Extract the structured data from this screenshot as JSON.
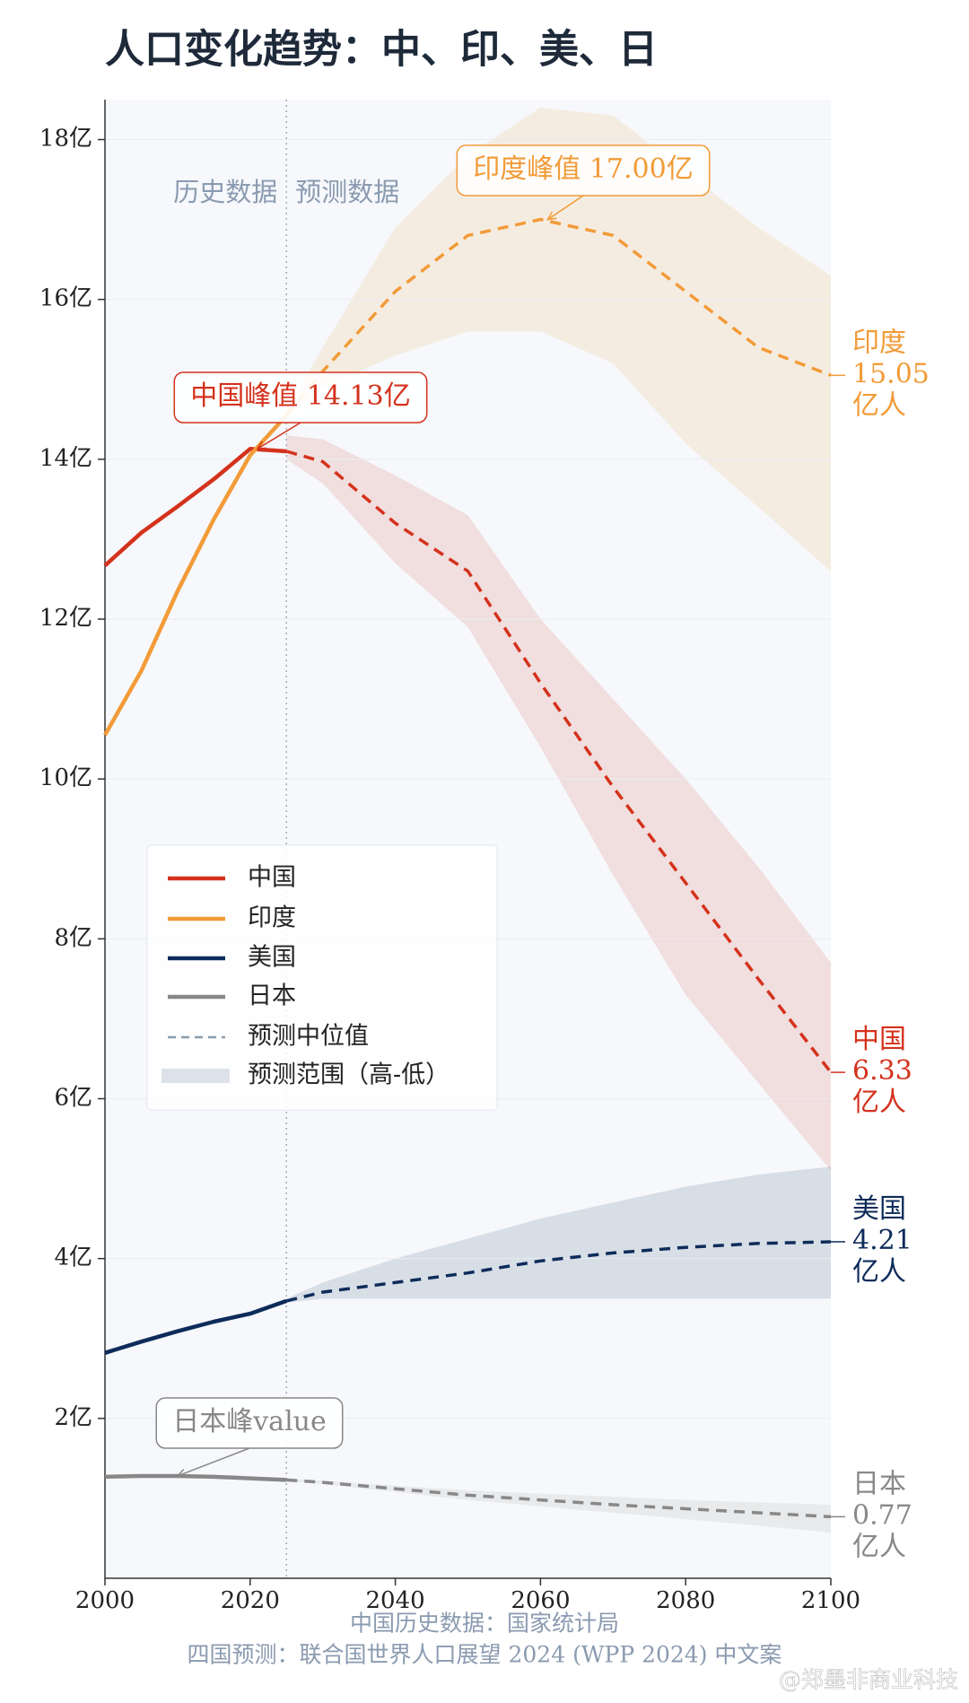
{
  "chart_data": {
    "type": "line",
    "title": "人口变化趋势：中、印、美、日",
    "x": [
      2000,
      2005,
      2010,
      2015,
      2020,
      2025,
      2030,
      2040,
      2050,
      2060,
      2070,
      2080,
      2090,
      2100
    ],
    "xlim": [
      2000,
      2100
    ],
    "xticks": [
      2000,
      2020,
      2040,
      2060,
      2080,
      2100
    ],
    "ylim": [
      0,
      18.5
    ],
    "yticks": [
      {
        "value": 2,
        "label": "2亿"
      },
      {
        "value": 4,
        "label": "4亿"
      },
      {
        "value": 6,
        "label": "6亿"
      },
      {
        "value": 8,
        "label": "8亿"
      },
      {
        "value": 10,
        "label": "10亿"
      },
      {
        "value": 12,
        "label": "12亿"
      },
      {
        "value": 14,
        "label": "14亿"
      },
      {
        "value": 16,
        "label": "16亿"
      },
      {
        "value": 18,
        "label": "18亿"
      }
    ],
    "grid": true,
    "divider": 2025,
    "divider_labels": [
      "历史数据",
      "预测数据"
    ],
    "series": [
      {
        "name": "中国",
        "color": "#d4321c",
        "history": [
          12.67,
          13.08,
          13.41,
          13.75,
          14.13,
          14.1,
          null,
          null,
          null,
          null,
          null,
          null,
          null,
          null
        ],
        "projection": [
          null,
          null,
          null,
          null,
          null,
          14.1,
          13.97,
          13.2,
          12.6,
          11.2,
          9.9,
          8.7,
          7.5,
          6.33
        ],
        "high": [
          null,
          null,
          null,
          null,
          null,
          14.3,
          14.25,
          13.8,
          13.3,
          12.0,
          11.0,
          10.0,
          8.9,
          7.7
        ],
        "low": [
          null,
          null,
          null,
          null,
          null,
          14.0,
          13.7,
          12.7,
          11.9,
          10.4,
          8.8,
          7.3,
          6.2,
          5.1
        ],
        "end_label": [
          "中国",
          "6.33",
          "亿人"
        ]
      },
      {
        "name": "印度",
        "color": "#f29b38",
        "history": [
          10.55,
          11.35,
          12.35,
          13.25,
          14.05,
          14.55,
          null,
          null,
          null,
          null,
          null,
          null,
          null,
          null
        ],
        "projection": [
          null,
          null,
          null,
          null,
          null,
          14.55,
          15.1,
          16.1,
          16.8,
          17.0,
          16.8,
          16.1,
          15.4,
          15.05
        ],
        "high": [
          null,
          null,
          null,
          null,
          null,
          14.6,
          15.4,
          16.9,
          17.8,
          18.4,
          18.3,
          17.6,
          16.9,
          16.3
        ],
        "low": [
          null,
          null,
          null,
          null,
          null,
          14.5,
          14.9,
          15.3,
          15.6,
          15.6,
          15.2,
          14.2,
          13.4,
          12.6
        ],
        "end_label": [
          "印度",
          "15.05",
          "亿人"
        ]
      },
      {
        "name": "美国",
        "color": "#0e2c5a",
        "history": [
          2.82,
          2.96,
          3.09,
          3.21,
          3.31,
          3.47,
          null,
          null,
          null,
          null,
          null,
          null,
          null,
          null
        ],
        "projection": [
          null,
          null,
          null,
          null,
          null,
          3.47,
          3.58,
          3.7,
          3.82,
          3.97,
          4.07,
          4.14,
          4.19,
          4.21
        ],
        "high": [
          null,
          null,
          null,
          null,
          null,
          3.5,
          3.7,
          4.0,
          4.25,
          4.5,
          4.7,
          4.9,
          5.05,
          5.15
        ],
        "low": [
          null,
          null,
          null,
          null,
          null,
          3.45,
          3.5,
          3.5,
          3.5,
          3.5,
          3.5,
          3.5,
          3.5,
          3.5
        ],
        "end_label": [
          "美国",
          "4.21",
          "亿人"
        ]
      },
      {
        "name": "日本",
        "color": "#888888",
        "history": [
          1.27,
          1.28,
          1.28,
          1.27,
          1.25,
          1.23,
          null,
          null,
          null,
          null,
          null,
          null,
          null,
          null
        ],
        "projection": [
          null,
          null,
          null,
          null,
          null,
          1.23,
          1.2,
          1.12,
          1.04,
          0.98,
          0.92,
          0.87,
          0.82,
          0.77
        ],
        "high": [
          null,
          null,
          null,
          null,
          null,
          1.24,
          1.22,
          1.16,
          1.1,
          1.06,
          1.02,
          0.98,
          0.95,
          0.92
        ],
        "low": [
          null,
          null,
          null,
          null,
          null,
          1.22,
          1.18,
          1.08,
          0.98,
          0.9,
          0.82,
          0.74,
          0.66,
          0.57
        ],
        "end_label": [
          "日本",
          "0.77",
          "亿人"
        ]
      }
    ],
    "median_label": "预测中位值",
    "range_label": "预测范围（高-低）",
    "annotations": [
      {
        "text": "中国峰值 14.13亿",
        "x": 2021,
        "y": 14.13,
        "series": 0
      },
      {
        "text": "印度峰值 17.00亿",
        "x": 2061,
        "y": 17.0,
        "series": 1
      },
      {
        "text": "日本峰value",
        "x": 2010,
        "y": 1.28,
        "series": 3
      }
    ],
    "sources": [
      "中国历史数据：国家统计局",
      "四国预测：联合国世界人口展望 2024 (WPP 2024) 中文案"
    ],
    "watermark": "@郑墨非商业科技"
  }
}
